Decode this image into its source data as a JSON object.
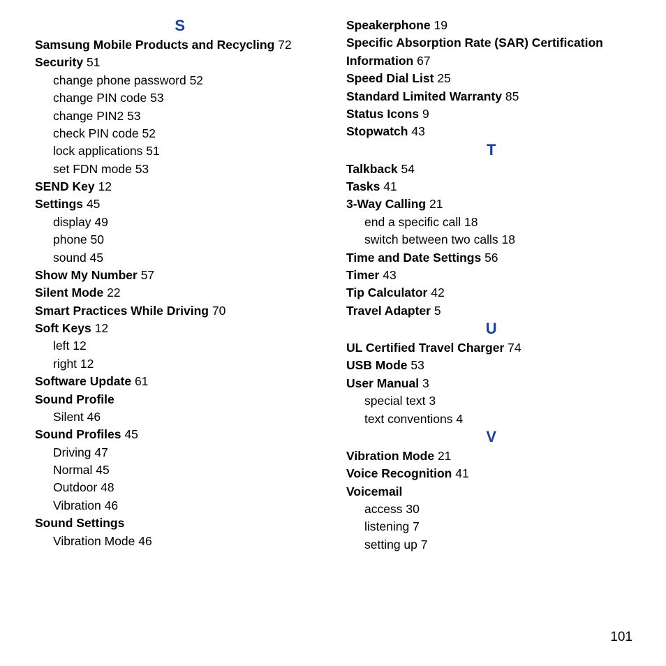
{
  "page_number": "101",
  "text_color": "#000000",
  "letter_color": "#1a3f9f",
  "background_color": "#ffffff",
  "font_family": "Arial, Helvetica, sans-serif",
  "left_column": {
    "sections": [
      {
        "letter": "S",
        "items": [
          {
            "bold": "Samsung Mobile Products and Recycling",
            "page": "72"
          },
          {
            "bold": "Security",
            "page": "51"
          },
          {
            "sub": true,
            "text": "change phone password",
            "page": "52"
          },
          {
            "sub": true,
            "text": "change PIN code",
            "page": "53"
          },
          {
            "sub": true,
            "text": "change PIN2",
            "page": "53"
          },
          {
            "sub": true,
            "text": "check PIN code",
            "page": "52"
          },
          {
            "sub": true,
            "text": "lock applications",
            "page": "51"
          },
          {
            "sub": true,
            "text": "set FDN mode",
            "page": "53"
          },
          {
            "bold": "SEND Key",
            "page": "12"
          },
          {
            "bold": "Settings",
            "page": "45"
          },
          {
            "sub": true,
            "text": "display",
            "page": "49"
          },
          {
            "sub": true,
            "text": "phone",
            "page": "50"
          },
          {
            "sub": true,
            "text": "sound",
            "page": "45"
          },
          {
            "bold": "Show My Number",
            "page": "57"
          },
          {
            "bold": "Silent Mode",
            "page": "22"
          },
          {
            "bold": "Smart Practices While Driving",
            "page": "70"
          },
          {
            "bold": "Soft Keys",
            "page": "12"
          },
          {
            "sub": true,
            "text": "left",
            "page": "12"
          },
          {
            "sub": true,
            "text": "right",
            "page": "12"
          },
          {
            "bold": "Software Update",
            "page": "61"
          },
          {
            "bold": "Sound Profile",
            "page": ""
          },
          {
            "sub": true,
            "text": "Silent",
            "page": "46"
          },
          {
            "bold": "Sound Profiles",
            "page": "45"
          },
          {
            "sub": true,
            "text": "Driving",
            "page": "47"
          },
          {
            "sub": true,
            "text": "Normal",
            "page": "45"
          },
          {
            "sub": true,
            "text": "Outdoor",
            "page": "48"
          },
          {
            "sub": true,
            "text": "Vibration",
            "page": "46"
          },
          {
            "bold": "Sound Settings",
            "page": ""
          },
          {
            "sub": true,
            "text": "Vibration Mode",
            "page": "46"
          }
        ]
      }
    ]
  },
  "right_column": {
    "sections": [
      {
        "letter": "",
        "items": [
          {
            "bold": "Speakerphone",
            "page": "19"
          },
          {
            "bold": "Specific Absorption Rate (SAR) Certification Information",
            "page": "67"
          },
          {
            "bold": "Speed Dial List",
            "page": "25"
          },
          {
            "bold": "Standard Limited Warranty",
            "page": "85"
          },
          {
            "bold": "Status Icons",
            "page": "9"
          },
          {
            "bold": "Stopwatch",
            "page": "43"
          }
        ]
      },
      {
        "letter": "T",
        "items": [
          {
            "bold": "Talkback",
            "page": "54"
          },
          {
            "bold": "Tasks",
            "page": "41"
          },
          {
            "bold": "3-Way Calling",
            "page": "21"
          },
          {
            "sub": true,
            "text": "end a specific call",
            "page": "18"
          },
          {
            "sub": true,
            "text": "switch between two calls",
            "page": "18"
          },
          {
            "bold": "Time and Date Settings",
            "page": "56"
          },
          {
            "bold": "Timer",
            "page": "43"
          },
          {
            "bold": "Tip Calculator",
            "page": "42"
          },
          {
            "bold": "Travel Adapter",
            "page": "5"
          }
        ]
      },
      {
        "letter": "U",
        "items": [
          {
            "bold": "UL Certified Travel Charger",
            "page": "74"
          },
          {
            "bold": "USB Mode",
            "page": "53"
          },
          {
            "bold": "User Manual",
            "page": "3"
          },
          {
            "sub": true,
            "text": "special text",
            "page": "3"
          },
          {
            "sub": true,
            "text": "text conventions",
            "page": "4"
          }
        ]
      },
      {
        "letter": "V",
        "items": [
          {
            "bold": "Vibration Mode",
            "page": "21"
          },
          {
            "bold": "Voice Recognition",
            "page": "41"
          },
          {
            "bold": "Voicemail",
            "page": ""
          },
          {
            "sub": true,
            "text": "access",
            "page": "30"
          },
          {
            "sub": true,
            "text": "listening",
            "page": "7"
          },
          {
            "sub": true,
            "text": "setting up",
            "page": "7"
          }
        ]
      }
    ]
  }
}
